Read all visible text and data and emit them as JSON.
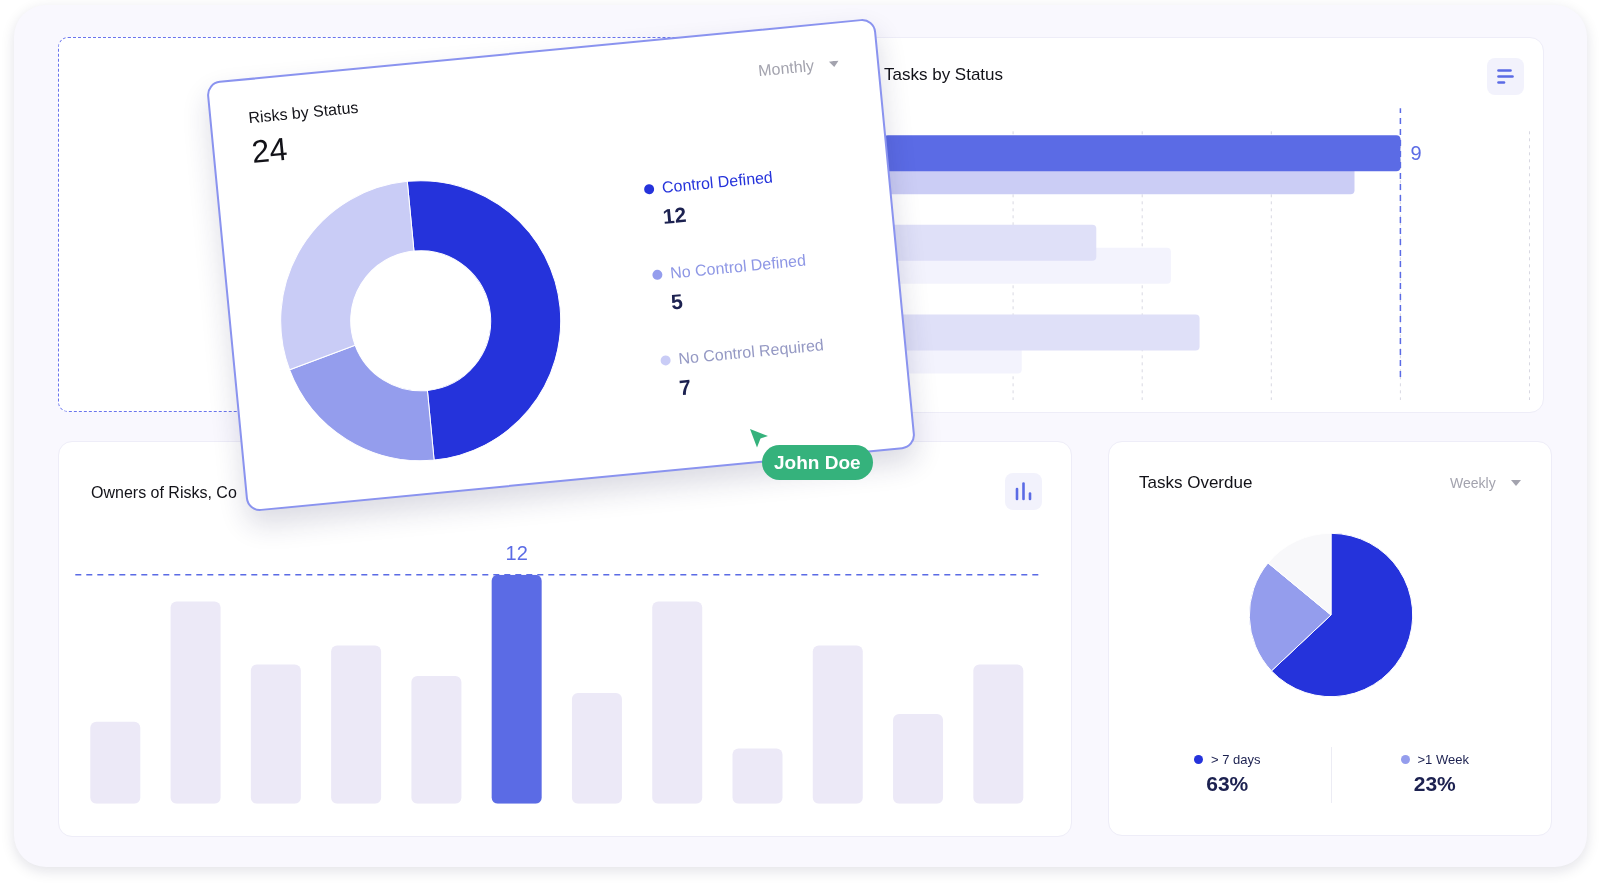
{
  "chart_data": [
    {
      "type": "donut",
      "title": "Risks by Status",
      "subtitle": "24",
      "categories": [
        "Control Defined",
        "No Control Defined",
        "No Control Required"
      ],
      "values": [
        12,
        5,
        7
      ],
      "colors": [
        "#2533db",
        "#949ded",
        "#c9ccf6"
      ],
      "value_labels": [
        "12",
        "5",
        "7"
      ],
      "legend": "right",
      "annotations": [
        "Monthly",
        "John Doe"
      ]
    },
    {
      "type": "bar",
      "title": "Tasks by Status",
      "orientation": "horizontal",
      "categories": [
        null,
        null,
        null
      ],
      "series": [
        {
          "colors": [
            "#5b6be5",
            "#dfe0f8",
            "#dfe0f8"
          ],
          "values": [
            9,
            3.7,
            5.5
          ],
          "value_labels": [
            "9",
            null,
            null
          ]
        },
        {
          "colors": [
            "#cbcdf5",
            "#f3f3fd",
            "#f3f3fd"
          ],
          "values": [
            8.2,
            5,
            2.4
          ]
        }
      ],
      "xlim": [
        0,
        11.25
      ],
      "xticks": [
        {
          "value": 2.25,
          "label": null
        },
        {
          "value": 4.5,
          "label": null
        },
        {
          "value": 6.75,
          "label": null
        },
        {
          "value": 9,
          "label": null
        },
        {
          "value": 11.25,
          "label": null
        }
      ],
      "tick_labels": false,
      "grid": "x",
      "ref_lines": [
        {
          "axis": "x",
          "value": 9,
          "color": "#5b6be5",
          "line_style": "dashed"
        }
      ]
    },
    {
      "type": "bar",
      "title": "Owners of Risks, Co",
      "categories": [
        null,
        null,
        null,
        null,
        null,
        null,
        null,
        null,
        null,
        null,
        null,
        null
      ],
      "values": [
        4.3,
        10.6,
        7.3,
        8.3,
        6.7,
        12,
        5.8,
        10.6,
        2.9,
        8.3,
        4.7,
        7.3
      ],
      "colors": [
        "#ece9f7",
        "#ece9f7",
        "#ece9f7",
        "#ece9f7",
        "#ece9f7",
        "#5b6be5",
        "#ece9f7",
        "#ece9f7",
        "#ece9f7",
        "#ece9f7",
        "#ece9f7",
        "#ece9f7"
      ],
      "value_labels": [
        null,
        null,
        null,
        null,
        null,
        "12",
        null,
        null,
        null,
        null,
        null,
        null
      ],
      "ylim": [
        0,
        12
      ],
      "tick_labels": false,
      "ref_lines": [
        {
          "axis": "y",
          "value": 12,
          "color": "#5b6be5",
          "line_style": "dashed"
        }
      ]
    },
    {
      "type": "pie",
      "title": "Tasks Overdue",
      "categories": [
        "> 7 days",
        ">1 Week",
        null
      ],
      "values": [
        63,
        23,
        14
      ],
      "colors": [
        "#2533db",
        "#949ded",
        "#f8f8fa"
      ],
      "value_labels": [
        "63%",
        "23%",
        null
      ],
      "legend": "bottom",
      "annotations": [
        "Weekly"
      ]
    }
  ]
}
